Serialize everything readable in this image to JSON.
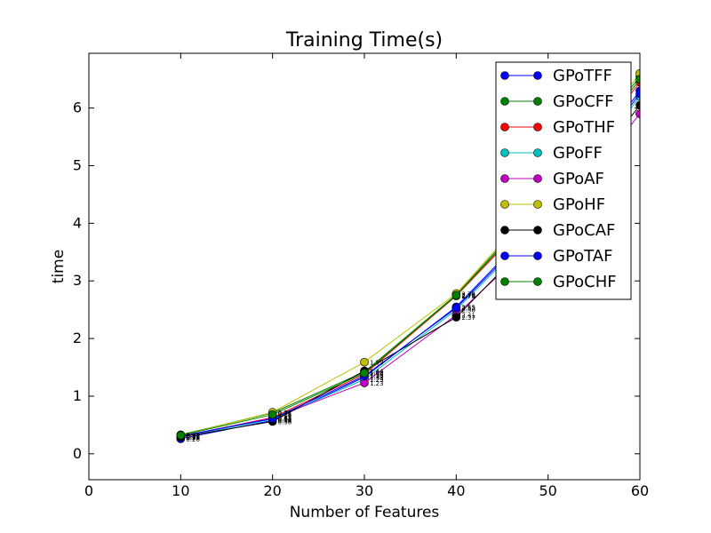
{
  "chart_data": {
    "type": "line",
    "title": "Training Time(s)",
    "xlabel": "Number of Features",
    "ylabel": "time",
    "xlim": [
      0,
      60
    ],
    "ylim": [
      -0.45,
      6.95
    ],
    "xticks": [
      0,
      10,
      20,
      30,
      40,
      50,
      60
    ],
    "yticks": [
      0,
      1,
      2,
      3,
      4,
      5,
      6
    ],
    "grid": false,
    "legend": "top-right",
    "x": [
      10,
      20,
      30,
      40,
      50,
      60
    ],
    "series": [
      {
        "name": "GPoTFF",
        "color": "#0000ff",
        "values": [
          0.26,
          0.58,
          1.33,
          2.55,
          4.2,
          6.3
        ],
        "labels": [
          "0.26",
          "0.58",
          "1.33",
          "2.55",
          "",
          ""
        ]
      },
      {
        "name": "GPoCFF",
        "color": "#008000",
        "values": [
          0.33,
          0.71,
          1.42,
          2.76,
          4.5,
          6.55
        ],
        "labels": [
          "0.33",
          "0.71",
          "1.42",
          "2.76",
          "",
          ""
        ]
      },
      {
        "name": "GPoTHF",
        "color": "#ff0000",
        "values": [
          0.3,
          0.63,
          1.38,
          2.74,
          4.4,
          6.45
        ],
        "labels": [
          "0.30",
          "0.63",
          "1.38",
          "2.74",
          "",
          ""
        ]
      },
      {
        "name": "GPoFF",
        "color": "#00bfbf",
        "values": [
          0.29,
          0.6,
          1.29,
          2.5,
          4.1,
          6.2
        ],
        "labels": [
          "0.29",
          "0.60",
          "1.29",
          "2.50",
          "",
          ""
        ]
      },
      {
        "name": "GPoAF",
        "color": "#bf00bf",
        "values": [
          0.3,
          0.62,
          1.23,
          2.41,
          3.9,
          5.9
        ],
        "labels": [
          "0.30",
          "0.62",
          "1.23",
          "2.41",
          "",
          ""
        ]
      },
      {
        "name": "GPoHF",
        "color": "#bfbf00",
        "values": [
          0.32,
          0.72,
          1.59,
          2.78,
          4.55,
          6.6
        ],
        "labels": [
          "0.32",
          "0.72",
          "1.59",
          "2.78",
          "",
          ""
        ]
      },
      {
        "name": "GPoCAF",
        "color": "#000000",
        "values": [
          0.29,
          0.56,
          1.44,
          2.37,
          4.0,
          6.05
        ],
        "labels": [
          "0.29",
          "0.56",
          "1.44",
          "2.37",
          "",
          ""
        ]
      },
      {
        "name": "GPoTAF",
        "color": "#0000ff",
        "values": [
          0.31,
          0.61,
          1.35,
          2.53,
          4.15,
          6.25
        ],
        "labels": [
          "0.31",
          "0.61",
          "1.35",
          "2.53",
          "",
          ""
        ]
      },
      {
        "name": "GPoCHF",
        "color": "#008000",
        "values": [
          0.32,
          0.68,
          1.4,
          2.75,
          4.45,
          6.5
        ],
        "labels": [
          "0.32",
          "0.68",
          "1.40",
          "2.75",
          "",
          ""
        ]
      }
    ]
  }
}
